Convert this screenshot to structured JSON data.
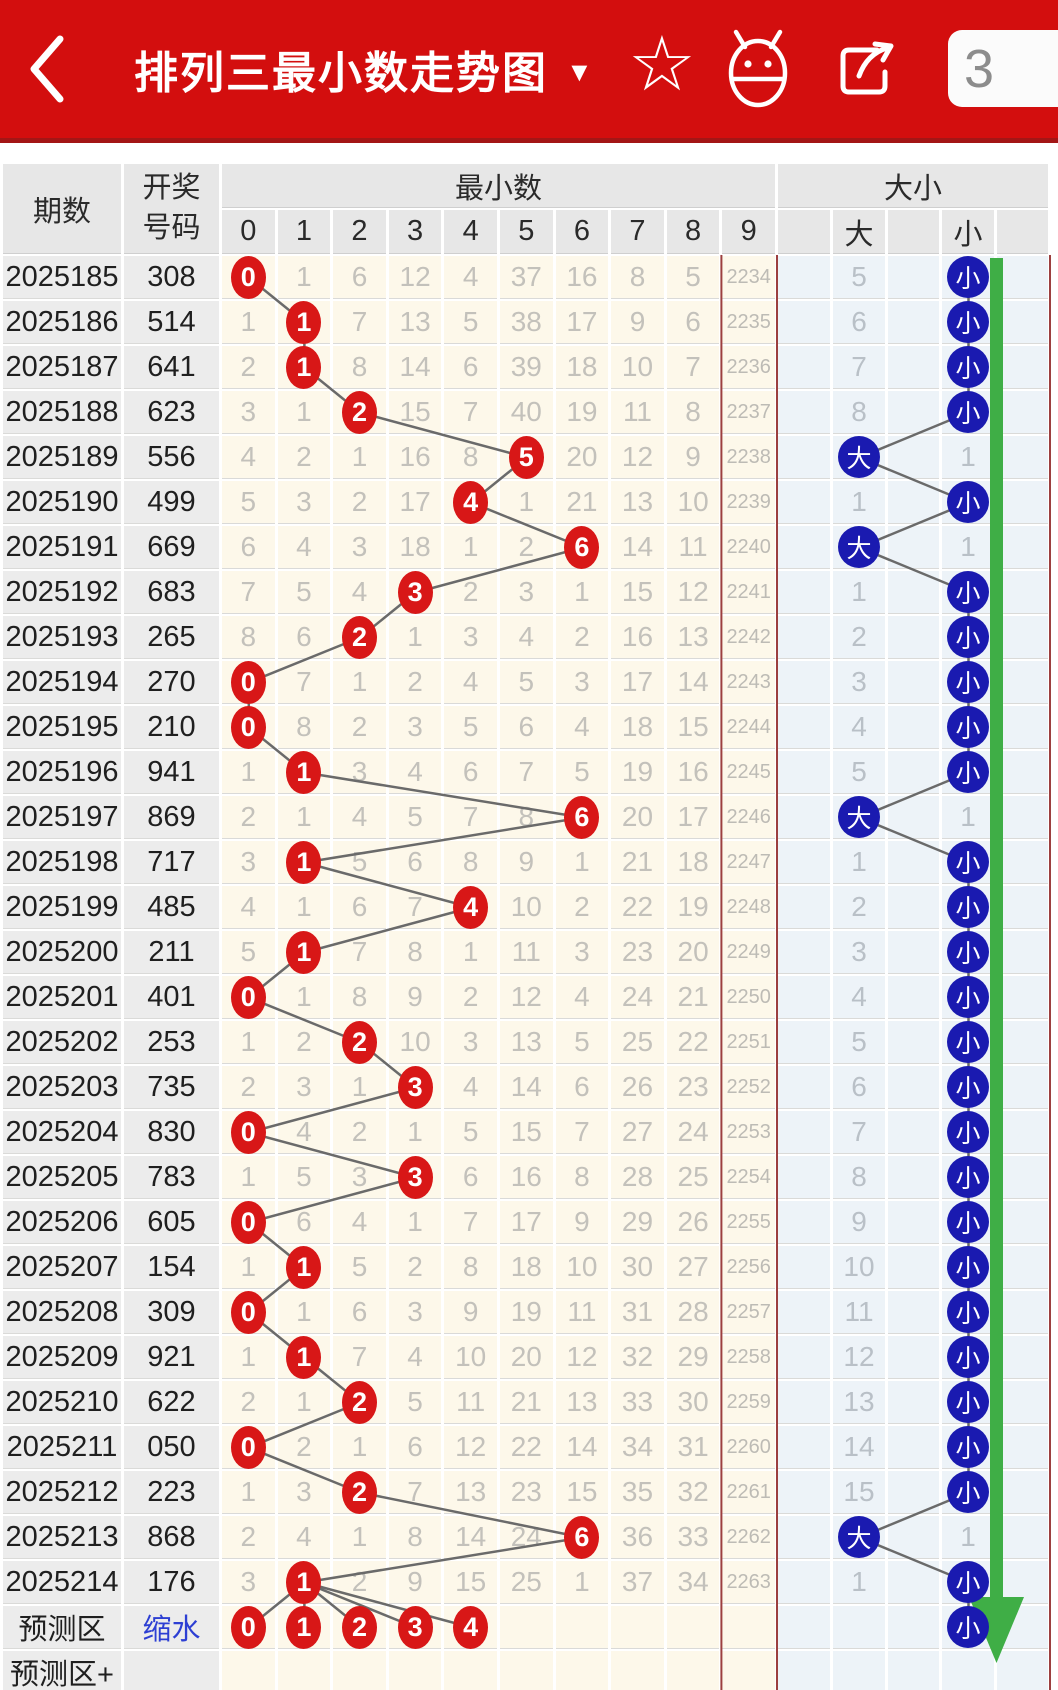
{
  "app_bar": {
    "title": "排列三最小数走势图",
    "dropdown_icon": "▼",
    "badge": "3",
    "icons": [
      "back-icon",
      "star-icon",
      "android-icon",
      "share-icon"
    ]
  },
  "colors": {
    "app_bar_red": "#d30e0e",
    "app_bar_underline": "#a31616",
    "header_cell_bg": "#e7e7e7",
    "fixed_col_bg": "#ececec",
    "digit_col_bg": "#fdf8ea",
    "bigsmall_col_bg": "#edf3f8",
    "red_circle": "#d81717",
    "blue_circle": "#1a1ab0",
    "trend_line": "#6a6a6a",
    "green_arrow": "#3fae46",
    "frame_line": "#9c3f3f",
    "miss_text": "#c3c1bb",
    "bigsmall_miss_text": "#b9c0c7",
    "link_blue": "#2d3fd3"
  },
  "table": {
    "headers": {
      "period": "期数",
      "draw_line1": "开奖",
      "draw_line2": "号码",
      "min_group": "最小数",
      "digit_columns": [
        "0",
        "1",
        "2",
        "3",
        "4",
        "5",
        "6",
        "7",
        "8",
        "9"
      ],
      "bigsmall_group": "大小",
      "big": "大",
      "small": "小"
    },
    "rows": [
      {
        "period": "2025185",
        "number": "308",
        "min_index": 0,
        "cells": [
          "0",
          "1",
          "6",
          "12",
          "4",
          "37",
          "16",
          "8",
          "5",
          "2234"
        ],
        "big_small": "small",
        "big_miss": "5",
        "small_miss": ""
      },
      {
        "period": "2025186",
        "number": "514",
        "min_index": 1,
        "cells": [
          "1",
          "1",
          "7",
          "13",
          "5",
          "38",
          "17",
          "9",
          "6",
          "2235"
        ],
        "big_small": "small",
        "big_miss": "6",
        "small_miss": ""
      },
      {
        "period": "2025187",
        "number": "641",
        "min_index": 1,
        "cells": [
          "2",
          "1",
          "8",
          "14",
          "6",
          "39",
          "18",
          "10",
          "7",
          "2236"
        ],
        "big_small": "small",
        "big_miss": "7",
        "small_miss": ""
      },
      {
        "period": "2025188",
        "number": "623",
        "min_index": 2,
        "cells": [
          "3",
          "1",
          "2",
          "15",
          "7",
          "40",
          "19",
          "11",
          "8",
          "2237"
        ],
        "big_small": "small",
        "big_miss": "8",
        "small_miss": ""
      },
      {
        "period": "2025189",
        "number": "556",
        "min_index": 5,
        "cells": [
          "4",
          "2",
          "1",
          "16",
          "8",
          "5",
          "20",
          "12",
          "9",
          "2238"
        ],
        "big_small": "big",
        "big_miss": "",
        "small_miss": "1"
      },
      {
        "period": "2025190",
        "number": "499",
        "min_index": 4,
        "cells": [
          "5",
          "3",
          "2",
          "17",
          "4",
          "1",
          "21",
          "13",
          "10",
          "2239"
        ],
        "big_small": "small",
        "big_miss": "1",
        "small_miss": ""
      },
      {
        "period": "2025191",
        "number": "669",
        "min_index": 6,
        "cells": [
          "6",
          "4",
          "3",
          "18",
          "1",
          "2",
          "6",
          "14",
          "11",
          "2240"
        ],
        "big_small": "big",
        "big_miss": "",
        "small_miss": "1"
      },
      {
        "period": "2025192",
        "number": "683",
        "min_index": 3,
        "cells": [
          "7",
          "5",
          "4",
          "3",
          "2",
          "3",
          "1",
          "15",
          "12",
          "2241"
        ],
        "big_small": "small",
        "big_miss": "1",
        "small_miss": ""
      },
      {
        "period": "2025193",
        "number": "265",
        "min_index": 2,
        "cells": [
          "8",
          "6",
          "2",
          "1",
          "3",
          "4",
          "2",
          "16",
          "13",
          "2242"
        ],
        "big_small": "small",
        "big_miss": "2",
        "small_miss": ""
      },
      {
        "period": "2025194",
        "number": "270",
        "min_index": 0,
        "cells": [
          "0",
          "7",
          "1",
          "2",
          "4",
          "5",
          "3",
          "17",
          "14",
          "2243"
        ],
        "big_small": "small",
        "big_miss": "3",
        "small_miss": ""
      },
      {
        "period": "2025195",
        "number": "210",
        "min_index": 0,
        "cells": [
          "0",
          "8",
          "2",
          "3",
          "5",
          "6",
          "4",
          "18",
          "15",
          "2244"
        ],
        "big_small": "small",
        "big_miss": "4",
        "small_miss": ""
      },
      {
        "period": "2025196",
        "number": "941",
        "min_index": 1,
        "cells": [
          "1",
          "1",
          "3",
          "4",
          "6",
          "7",
          "5",
          "19",
          "16",
          "2245"
        ],
        "big_small": "small",
        "big_miss": "5",
        "small_miss": ""
      },
      {
        "period": "2025197",
        "number": "869",
        "min_index": 6,
        "cells": [
          "2",
          "1",
          "4",
          "5",
          "7",
          "8",
          "6",
          "20",
          "17",
          "2246"
        ],
        "big_small": "big",
        "big_miss": "",
        "small_miss": "1"
      },
      {
        "period": "2025198",
        "number": "717",
        "min_index": 1,
        "cells": [
          "3",
          "1",
          "5",
          "6",
          "8",
          "9",
          "1",
          "21",
          "18",
          "2247"
        ],
        "big_small": "small",
        "big_miss": "1",
        "small_miss": ""
      },
      {
        "period": "2025199",
        "number": "485",
        "min_index": 4,
        "cells": [
          "4",
          "1",
          "6",
          "7",
          "4",
          "10",
          "2",
          "22",
          "19",
          "2248"
        ],
        "big_small": "small",
        "big_miss": "2",
        "small_miss": ""
      },
      {
        "period": "2025200",
        "number": "211",
        "min_index": 1,
        "cells": [
          "5",
          "1",
          "7",
          "8",
          "1",
          "11",
          "3",
          "23",
          "20",
          "2249"
        ],
        "big_small": "small",
        "big_miss": "3",
        "small_miss": ""
      },
      {
        "period": "2025201",
        "number": "401",
        "min_index": 0,
        "cells": [
          "0",
          "1",
          "8",
          "9",
          "2",
          "12",
          "4",
          "24",
          "21",
          "2250"
        ],
        "big_small": "small",
        "big_miss": "4",
        "small_miss": ""
      },
      {
        "period": "2025202",
        "number": "253",
        "min_index": 2,
        "cells": [
          "1",
          "2",
          "2",
          "10",
          "3",
          "13",
          "5",
          "25",
          "22",
          "2251"
        ],
        "big_small": "small",
        "big_miss": "5",
        "small_miss": ""
      },
      {
        "period": "2025203",
        "number": "735",
        "min_index": 3,
        "cells": [
          "2",
          "3",
          "1",
          "3",
          "4",
          "14",
          "6",
          "26",
          "23",
          "2252"
        ],
        "big_small": "small",
        "big_miss": "6",
        "small_miss": ""
      },
      {
        "period": "2025204",
        "number": "830",
        "min_index": 0,
        "cells": [
          "0",
          "4",
          "2",
          "1",
          "5",
          "15",
          "7",
          "27",
          "24",
          "2253"
        ],
        "big_small": "small",
        "big_miss": "7",
        "small_miss": ""
      },
      {
        "period": "2025205",
        "number": "783",
        "min_index": 3,
        "cells": [
          "1",
          "5",
          "3",
          "3",
          "6",
          "16",
          "8",
          "28",
          "25",
          "2254"
        ],
        "big_small": "small",
        "big_miss": "8",
        "small_miss": ""
      },
      {
        "period": "2025206",
        "number": "605",
        "min_index": 0,
        "cells": [
          "0",
          "6",
          "4",
          "1",
          "7",
          "17",
          "9",
          "29",
          "26",
          "2255"
        ],
        "big_small": "small",
        "big_miss": "9",
        "small_miss": ""
      },
      {
        "period": "2025207",
        "number": "154",
        "min_index": 1,
        "cells": [
          "1",
          "1",
          "5",
          "2",
          "8",
          "18",
          "10",
          "30",
          "27",
          "2256"
        ],
        "big_small": "small",
        "big_miss": "10",
        "small_miss": ""
      },
      {
        "period": "2025208",
        "number": "309",
        "min_index": 0,
        "cells": [
          "0",
          "1",
          "6",
          "3",
          "9",
          "19",
          "11",
          "31",
          "28",
          "2257"
        ],
        "big_small": "small",
        "big_miss": "11",
        "small_miss": ""
      },
      {
        "period": "2025209",
        "number": "921",
        "min_index": 1,
        "cells": [
          "1",
          "1",
          "7",
          "4",
          "10",
          "20",
          "12",
          "32",
          "29",
          "2258"
        ],
        "big_small": "small",
        "big_miss": "12",
        "small_miss": ""
      },
      {
        "period": "2025210",
        "number": "622",
        "min_index": 2,
        "cells": [
          "2",
          "1",
          "2",
          "5",
          "11",
          "21",
          "13",
          "33",
          "30",
          "2259"
        ],
        "big_small": "small",
        "big_miss": "13",
        "small_miss": ""
      },
      {
        "period": "2025211",
        "number": "050",
        "min_index": 0,
        "cells": [
          "0",
          "2",
          "1",
          "6",
          "12",
          "22",
          "14",
          "34",
          "31",
          "2260"
        ],
        "big_small": "small",
        "big_miss": "14",
        "small_miss": ""
      },
      {
        "period": "2025212",
        "number": "223",
        "min_index": 2,
        "cells": [
          "1",
          "3",
          "2",
          "7",
          "13",
          "23",
          "15",
          "35",
          "32",
          "2261"
        ],
        "big_small": "small",
        "big_miss": "15",
        "small_miss": ""
      },
      {
        "period": "2025213",
        "number": "868",
        "min_index": 6,
        "cells": [
          "2",
          "4",
          "1",
          "8",
          "14",
          "24",
          "6",
          "36",
          "33",
          "2262"
        ],
        "big_small": "big",
        "big_miss": "",
        "small_miss": "1"
      },
      {
        "period": "2025214",
        "number": "176",
        "min_index": 1,
        "cells": [
          "3",
          "1",
          "2",
          "9",
          "15",
          "25",
          "1",
          "37",
          "34",
          "2263"
        ],
        "big_small": "small",
        "big_miss": "1",
        "small_miss": ""
      }
    ],
    "prediction_rows": [
      {
        "period": "预测区",
        "number": "缩水",
        "predicted_digits": [
          0,
          1,
          2,
          3,
          4
        ],
        "big_small": "small"
      },
      {
        "period": "预测区+",
        "number": "",
        "predicted_digits": [],
        "big_small": ""
      }
    ]
  }
}
